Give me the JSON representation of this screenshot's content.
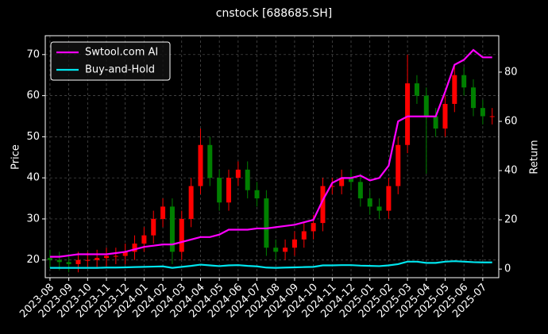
{
  "chart_data": {
    "type": "candlestick",
    "title": "cnstock [688685.SH]",
    "ylabel": "Price",
    "y2label": "Return",
    "background": "#000000",
    "grid": true,
    "legend_loc": "upper left",
    "up_color": "#ff0000",
    "down_color": "#008000",
    "xlim": [
      -0.25,
      23.85
    ],
    "xticks": [
      {
        "value": 0,
        "label": "2023-08"
      },
      {
        "value": 1,
        "label": "2023-09"
      },
      {
        "value": 2,
        "label": "2023-10"
      },
      {
        "value": 3,
        "label": "2023-11"
      },
      {
        "value": 4,
        "label": "2023-12"
      },
      {
        "value": 5,
        "label": "2024-01"
      },
      {
        "value": 6,
        "label": "2024-02"
      },
      {
        "value": 7,
        "label": "2024-03"
      },
      {
        "value": 8,
        "label": "2024-04"
      },
      {
        "value": 9,
        "label": "2024-05"
      },
      {
        "value": 10,
        "label": "2024-06"
      },
      {
        "value": 11,
        "label": "2024-07"
      },
      {
        "value": 12,
        "label": "2024-08"
      },
      {
        "value": 13,
        "label": "2024-09"
      },
      {
        "value": 14,
        "label": "2024-10"
      },
      {
        "value": 15,
        "label": "2024-11"
      },
      {
        "value": 16,
        "label": "2024-12"
      },
      {
        "value": 17,
        "label": "2025-01"
      },
      {
        "value": 18,
        "label": "2025-02"
      },
      {
        "value": 19,
        "label": "2025-03"
      },
      {
        "value": 20,
        "label": "2025-04"
      },
      {
        "value": 21,
        "label": "2025-05"
      },
      {
        "value": 22,
        "label": "2025-06"
      },
      {
        "value": 23,
        "label": "2025-07"
      }
    ],
    "ylim": [
      15.7,
      74.6
    ],
    "yticks": [
      20,
      30,
      40,
      50,
      60,
      70
    ],
    "y2lim": [
      -3.5,
      94.8
    ],
    "y2ticks": [
      0,
      20,
      40,
      60,
      80
    ],
    "x": [
      0,
      0.5,
      1,
      1.5,
      2,
      2.5,
      3,
      3.5,
      4,
      4.5,
      5,
      5.5,
      6,
      6.5,
      7,
      7.5,
      8,
      8.5,
      9,
      9.5,
      10,
      10.5,
      11,
      11.5,
      12,
      12.5,
      13,
      13.5,
      14,
      14.5,
      15,
      15.5,
      16,
      16.5,
      17,
      17.5,
      18,
      18.5,
      19,
      19.5,
      20,
      20.5,
      21,
      21.5,
      22,
      22.5,
      23,
      23.5
    ],
    "open": [
      20.5,
      20,
      19.5,
      19,
      20,
      20,
      20.5,
      21,
      21,
      22,
      24,
      26,
      30,
      33,
      22,
      30,
      38,
      48,
      40,
      34,
      40,
      42,
      37,
      35,
      23,
      22,
      23,
      25,
      27,
      29,
      38,
      38,
      40,
      39,
      35,
      33,
      32,
      38,
      48,
      63,
      60,
      55,
      52,
      58,
      65,
      62,
      57,
      55
    ],
    "high": [
      22.5,
      22,
      21.5,
      22,
      22,
      22.5,
      23,
      23,
      24,
      26,
      28,
      32,
      35,
      35,
      32,
      40,
      52,
      50,
      42,
      42,
      44,
      44,
      39,
      37,
      25,
      25,
      27,
      29,
      31,
      40,
      40,
      42,
      42,
      41,
      37,
      35,
      40,
      50,
      70,
      65,
      62,
      57,
      60,
      67,
      67,
      64,
      59,
      57
    ],
    "low": [
      18,
      17.5,
      17,
      17,
      18,
      18,
      18.5,
      19,
      19,
      20,
      22,
      24,
      28,
      19,
      20,
      28,
      36,
      38,
      32,
      32,
      38,
      35,
      33,
      21,
      20,
      20,
      21,
      23,
      25,
      27,
      36,
      36,
      37,
      33,
      31,
      30,
      30,
      36,
      46,
      58,
      41,
      50,
      50,
      56,
      60,
      55,
      53,
      53
    ],
    "close": [
      20,
      19.5,
      19,
      20,
      20,
      20.5,
      21,
      21,
      22,
      24,
      26,
      30,
      33,
      22,
      30,
      38,
      48,
      40,
      34,
      40,
      42,
      37,
      35,
      23,
      22,
      23,
      25,
      27,
      29,
      38,
      38,
      40,
      39,
      35,
      33,
      32,
      38,
      48,
      63,
      60,
      55,
      52,
      58,
      65,
      62,
      57,
      55,
      55
    ],
    "series": [
      {
        "name": "Swtool.com AI",
        "color": "#ff00ff",
        "axis": "y2",
        "values": [
          5,
          5,
          5.5,
          6,
          6,
          6,
          6,
          6.5,
          7,
          8,
          9,
          9.5,
          10,
          10,
          11,
          12,
          13,
          13,
          14,
          16,
          16,
          16,
          16.5,
          16.5,
          17,
          17.5,
          18,
          19,
          20,
          28,
          35,
          37,
          37,
          38,
          36,
          37,
          42,
          60,
          62,
          62,
          62,
          62,
          72,
          83,
          85,
          89,
          86,
          86
        ]
      },
      {
        "name": "Buy-and-Hold",
        "color": "#00e5ee",
        "axis": "y2",
        "values": [
          0.5,
          0.5,
          0.5,
          0.5,
          0.5,
          0.5,
          0.6,
          0.6,
          0.7,
          0.8,
          0.9,
          1,
          1.1,
          0.5,
          0.9,
          1.3,
          1.8,
          1.5,
          1.2,
          1.5,
          1.6,
          1.3,
          1.1,
          0.6,
          0.5,
          0.6,
          0.7,
          0.8,
          0.9,
          1.5,
          1.5,
          1.6,
          1.6,
          1.4,
          1.3,
          1.2,
          1.5,
          2,
          3,
          3,
          2.5,
          2.5,
          3,
          3.2,
          3,
          2.8,
          2.7,
          2.7
        ]
      }
    ]
  }
}
